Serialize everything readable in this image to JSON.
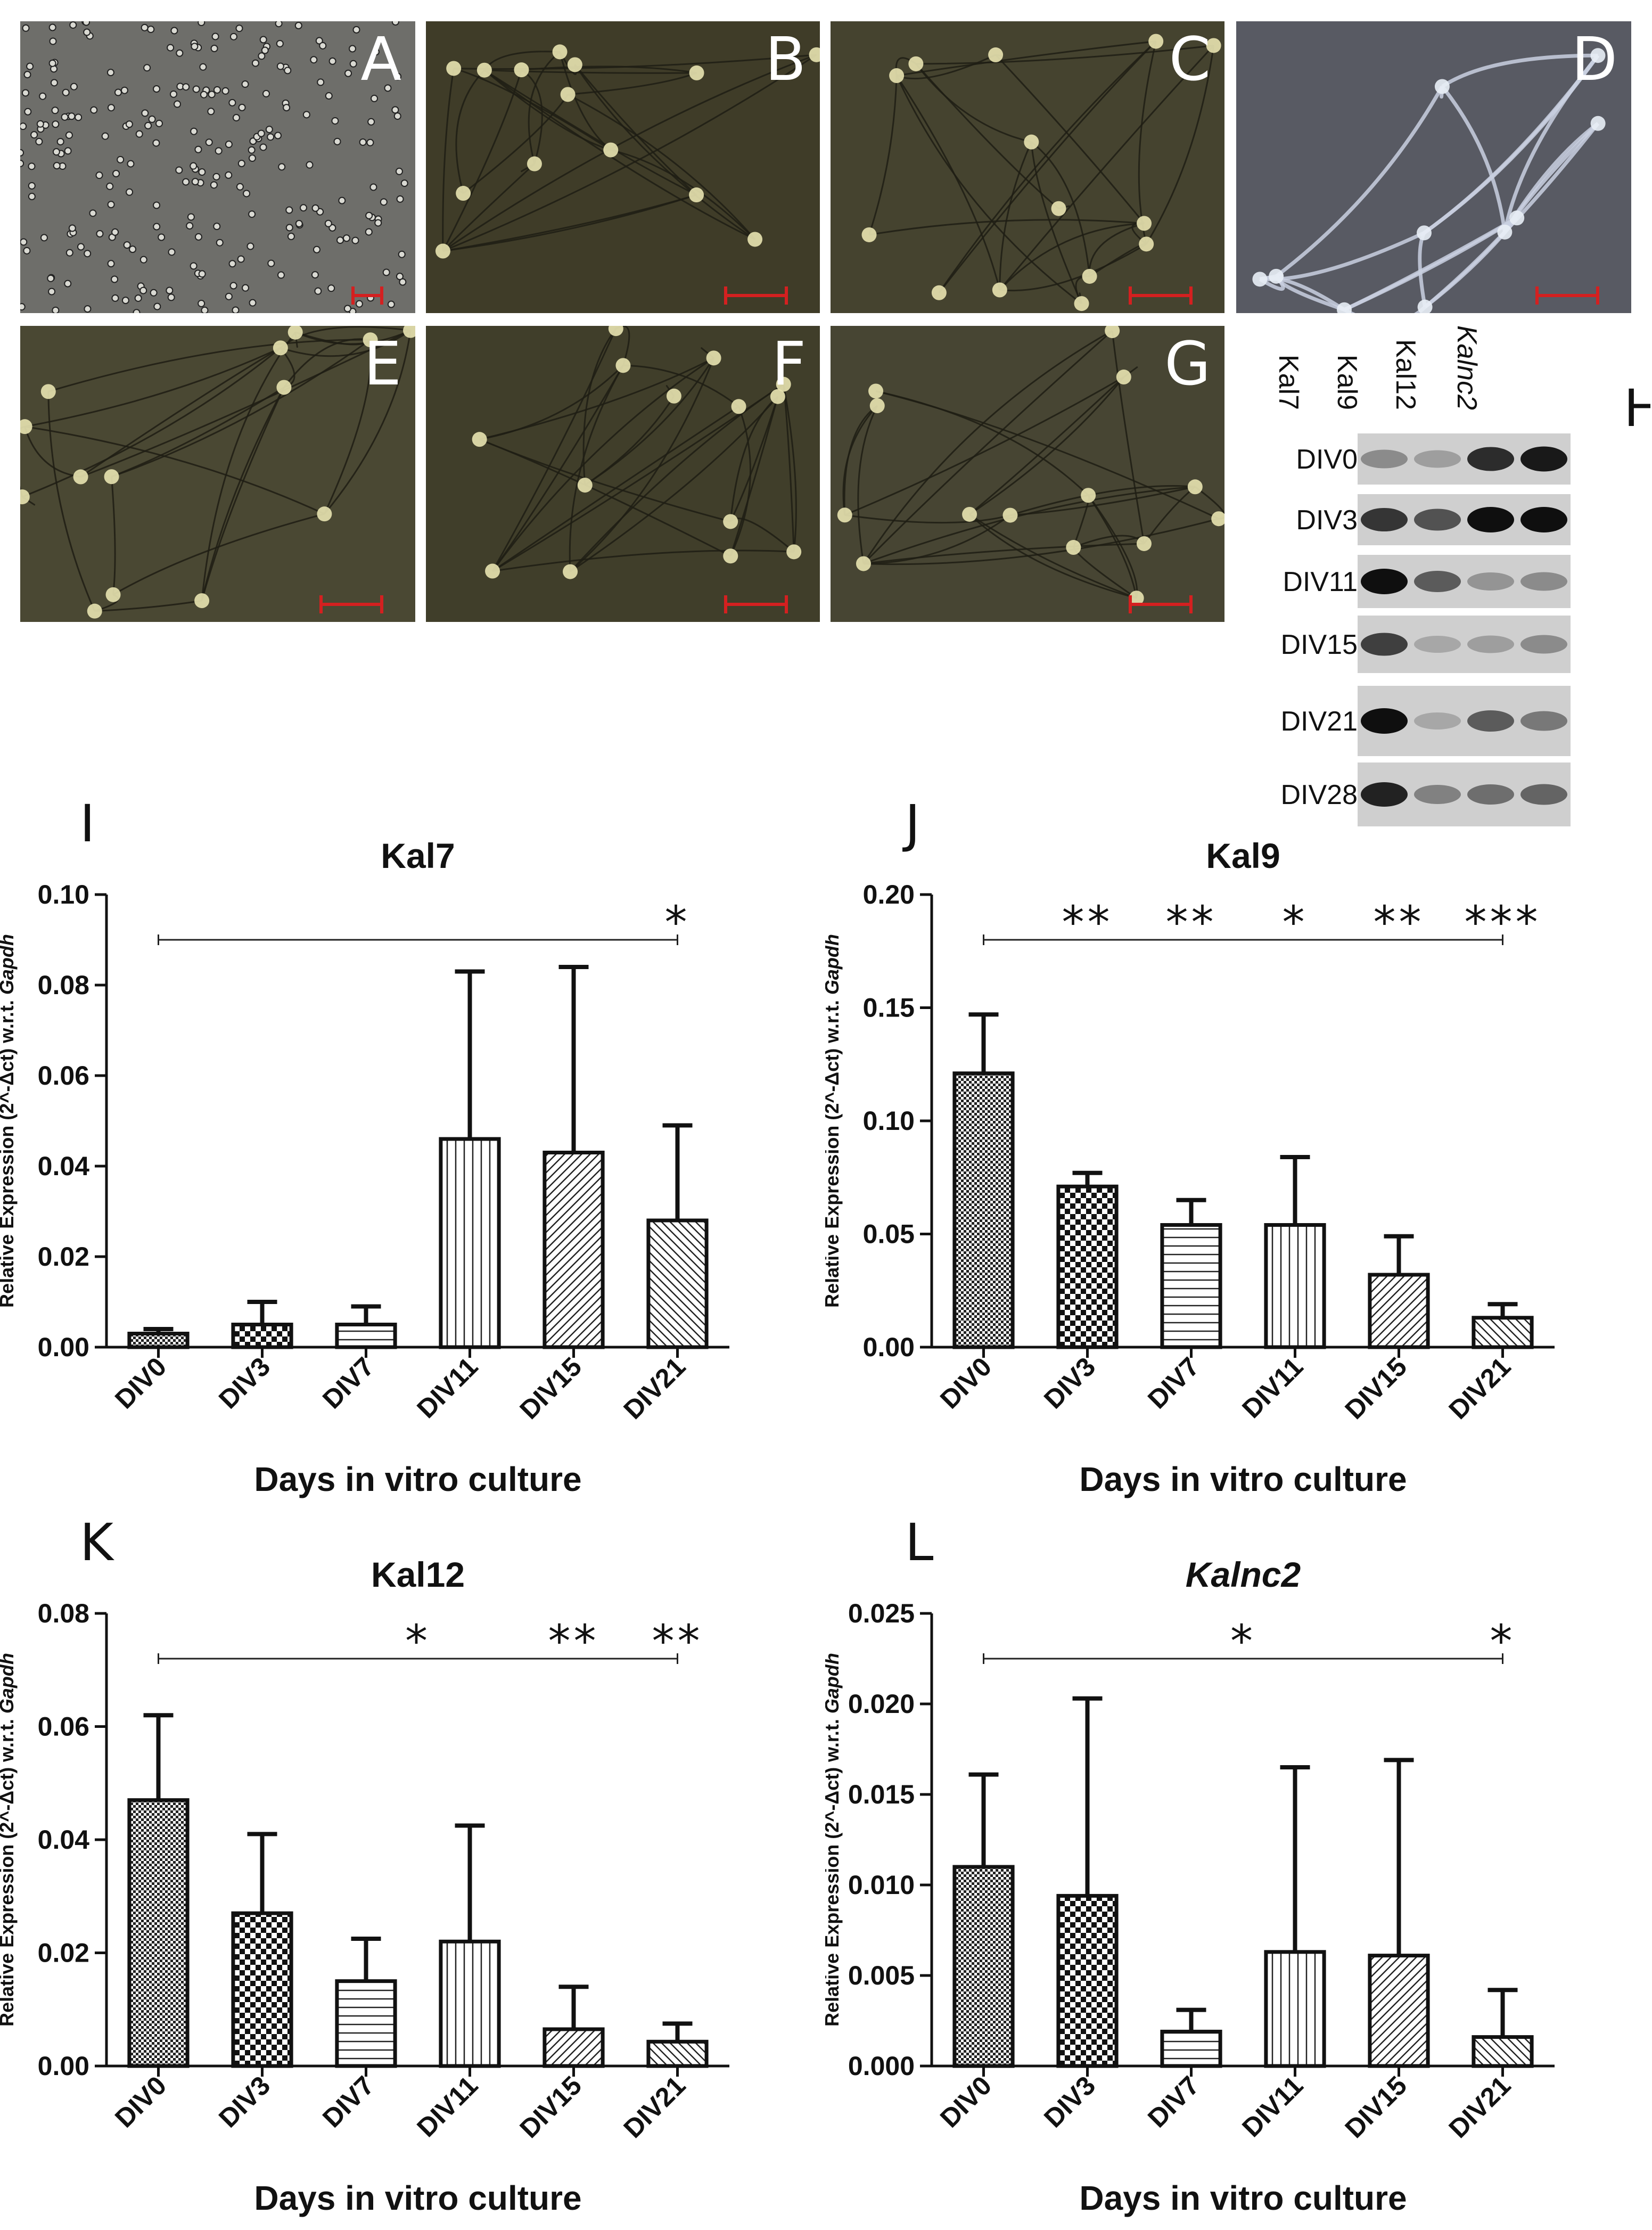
{
  "micrographs": [
    {
      "letter": "A",
      "bg": "#6e6e6a",
      "style": "dots"
    },
    {
      "letter": "B",
      "bg": "#3f3c28",
      "style": "neurons"
    },
    {
      "letter": "C",
      "bg": "#45432f",
      "style": "neurons"
    },
    {
      "letter": "D",
      "bg": "#585a63",
      "style": "network"
    },
    {
      "letter": "E",
      "bg": "#4a4833",
      "style": "neurons"
    },
    {
      "letter": "F",
      "bg": "#403e2a",
      "style": "neurons"
    },
    {
      "letter": "G",
      "bg": "#474533",
      "style": "neurons"
    }
  ],
  "blot": {
    "letter": "H",
    "lanes": [
      "Kal7",
      "Kal9",
      "Kal12",
      "Kalnc2"
    ],
    "lane_italic": [
      false,
      false,
      false,
      true
    ],
    "rows": [
      {
        "label": "DIV0",
        "intensity": [
          0.35,
          0.25,
          0.85,
          0.95
        ]
      },
      {
        "label": "DIV3",
        "intensity": [
          0.8,
          0.65,
          1.0,
          1.0
        ]
      },
      {
        "label": "DIV11",
        "intensity": [
          1.0,
          0.6,
          0.3,
          0.35
        ]
      },
      {
        "label": "DIV15",
        "intensity": [
          0.75,
          0.2,
          0.25,
          0.35
        ]
      },
      {
        "label": "DIV21",
        "intensity": [
          1.0,
          0.2,
          0.6,
          0.45
        ]
      },
      {
        "label": "DIV28",
        "intensity": [
          0.9,
          0.4,
          0.5,
          0.55
        ]
      }
    ]
  },
  "chart_data": [
    {
      "panel": "I",
      "type": "bar",
      "title": "Kal7",
      "title_italic": false,
      "xlabel": "Days in vitro culture",
      "ylabel_prefix": "Relative Expression (2^-Δct) w.r.t. ",
      "ylabel_gene": "Gapdh",
      "categories": [
        "DIV0",
        "DIV3",
        "DIV7",
        "DIV11",
        "DIV15",
        "DIV21"
      ],
      "values": [
        0.003,
        0.005,
        0.005,
        0.046,
        0.043,
        0.028
      ],
      "errors": [
        0.001,
        0.005,
        0.004,
        0.037,
        0.041,
        0.021
      ],
      "patterns": [
        "checker-fine",
        "checker-coarse",
        "hlines",
        "vlines",
        "diag-right",
        "diag-left"
      ],
      "ylim": [
        0,
        0.1
      ],
      "yticks": [
        "0.00",
        "0.02",
        "0.04",
        "0.06",
        "0.08",
        "0.10"
      ],
      "sig_line": 0.09,
      "sig_marks": [
        {
          "index": 5,
          "text": "*"
        }
      ]
    },
    {
      "panel": "J",
      "type": "bar",
      "title": "Kal9",
      "title_italic": false,
      "xlabel": "Days in vitro culture",
      "ylabel_prefix": "Relative Expression (2^-Δct) w.r.t. ",
      "ylabel_gene": "Gapdh",
      "categories": [
        "DIV0",
        "DIV3",
        "DIV7",
        "DIV11",
        "DIV15",
        "DIV21"
      ],
      "values": [
        0.121,
        0.071,
        0.054,
        0.054,
        0.032,
        0.013
      ],
      "errors": [
        0.026,
        0.006,
        0.011,
        0.03,
        0.017,
        0.006
      ],
      "patterns": [
        "checker-fine",
        "checker-coarse",
        "hlines",
        "vlines",
        "diag-right",
        "diag-left"
      ],
      "ylim": [
        0,
        0.2
      ],
      "yticks": [
        "0.00",
        "0.05",
        "0.10",
        "0.15",
        "0.20"
      ],
      "sig_line": 0.18,
      "sig_marks": [
        {
          "index": 1,
          "text": "**"
        },
        {
          "index": 2,
          "text": "**"
        },
        {
          "index": 3,
          "text": "*"
        },
        {
          "index": 4,
          "text": "**"
        },
        {
          "index": 5,
          "text": "***"
        }
      ]
    },
    {
      "panel": "K",
      "type": "bar",
      "title": "Kal12",
      "title_italic": false,
      "xlabel": "Days in vitro culture",
      "ylabel_prefix": "Relative Expression (2^-Δct) w.r.t. ",
      "ylabel_gene": "Gapdh",
      "categories": [
        "DIV0",
        "DIV3",
        "DIV7",
        "DIV11",
        "DIV15",
        "DIV21"
      ],
      "values": [
        0.047,
        0.027,
        0.015,
        0.022,
        0.0065,
        0.0043
      ],
      "errors": [
        0.015,
        0.014,
        0.0075,
        0.0205,
        0.0075,
        0.0032
      ],
      "patterns": [
        "checker-fine",
        "checker-coarse",
        "hlines",
        "vlines",
        "diag-right",
        "diag-left"
      ],
      "ylim": [
        0,
        0.08
      ],
      "yticks": [
        "0.00",
        "0.02",
        "0.04",
        "0.06",
        "0.08"
      ],
      "sig_line": 0.072,
      "sig_marks": [
        {
          "index": 2.5,
          "text": "*"
        },
        {
          "index": 4,
          "text": "**"
        },
        {
          "index": 5,
          "text": "**"
        }
      ]
    },
    {
      "panel": "L",
      "type": "bar",
      "title": "Kalnc2",
      "title_italic": true,
      "xlabel": "Days in vitro culture",
      "ylabel_prefix": "Relative Expression (2^-Δct) w.r.t. ",
      "ylabel_gene": "Gapdh",
      "categories": [
        "DIV0",
        "DIV3",
        "DIV7",
        "DIV11",
        "DIV15",
        "DIV21"
      ],
      "values": [
        0.011,
        0.0094,
        0.0019,
        0.0063,
        0.0061,
        0.0016
      ],
      "errors": [
        0.0051,
        0.0109,
        0.0012,
        0.0102,
        0.0108,
        0.0026
      ],
      "patterns": [
        "checker-fine",
        "checker-coarse",
        "hlines",
        "vlines",
        "diag-right",
        "diag-left"
      ],
      "ylim": [
        0,
        0.025
      ],
      "yticks": [
        "0.000",
        "0.005",
        "0.010",
        "0.015",
        "0.020",
        "0.025"
      ],
      "sig_line": 0.0225,
      "sig_marks": [
        {
          "index": 2.5,
          "text": "*"
        },
        {
          "index": 5,
          "text": "*"
        }
      ]
    }
  ]
}
